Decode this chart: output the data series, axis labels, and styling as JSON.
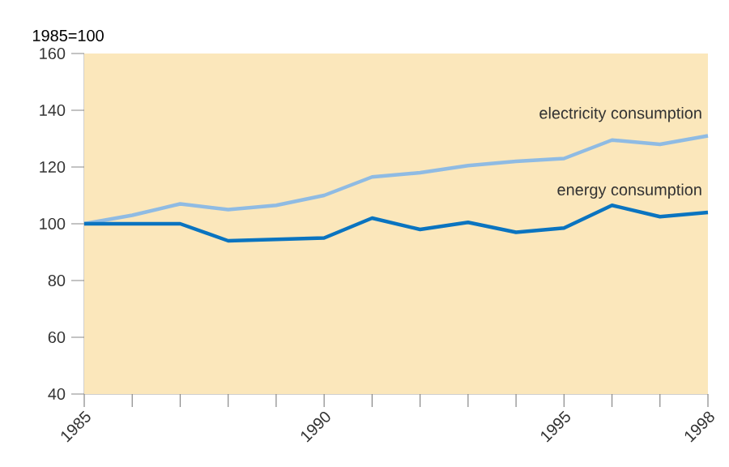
{
  "chart_data": {
    "type": "line",
    "ylabel": "1985=100",
    "x": [
      1985,
      1986,
      1987,
      1988,
      1989,
      1990,
      1991,
      1992,
      1993,
      1994,
      1995,
      1996,
      1997,
      1998
    ],
    "series": [
      {
        "name": "electricity consumption",
        "color": "#8fbbe3",
        "values": [
          100,
          103,
          107,
          105,
          106.5,
          110,
          116.5,
          118,
          120.5,
          122,
          123,
          129.5,
          128,
          131
        ]
      },
      {
        "name": "energy consumption",
        "color": "#0a74c0",
        "values": [
          100,
          100,
          100,
          94,
          94.5,
          95,
          102,
          98,
          100.5,
          97,
          98.5,
          106.5,
          102.5,
          104
        ]
      }
    ],
    "xlim": [
      1985,
      1998
    ],
    "xticks": [
      1985,
      {
        "value": 1986,
        "label": null
      },
      {
        "value": 1987,
        "label": null
      },
      {
        "value": 1988,
        "label": null
      },
      {
        "value": 1989,
        "label": null
      },
      1990,
      {
        "value": 1991,
        "label": null
      },
      {
        "value": 1992,
        "label": null
      },
      {
        "value": 1993,
        "label": null
      },
      {
        "value": 1994,
        "label": null
      },
      1995,
      {
        "value": 1996,
        "label": null
      },
      {
        "value": 1997,
        "label": null
      },
      1998
    ],
    "ylim": [
      40,
      160
    ],
    "yticks": [
      40,
      60,
      80,
      100,
      120,
      140,
      160
    ],
    "grid": false,
    "legend": false,
    "marker": "none",
    "line_style": "solid"
  }
}
